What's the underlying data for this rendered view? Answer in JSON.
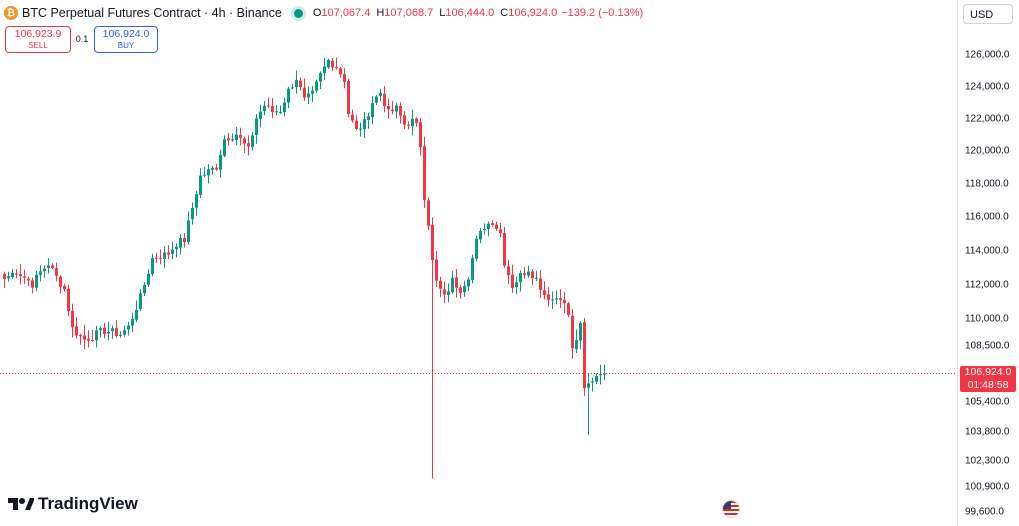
{
  "header": {
    "coin_icon": "bitcoin-icon",
    "coin_glyph": "₿",
    "title": "BTC Perpetual Futures Contract · 4h · Binance",
    "ohlc": {
      "o_label": "O",
      "o_value": "107,067.4",
      "h_label": "H",
      "h_value": "107,068.7",
      "l_label": "L",
      "l_value": "106,444.0",
      "c_label": "C",
      "c_value": "106,924.0",
      "change": "−139.2 (−0.13%)"
    }
  },
  "trade": {
    "sell_price": "106,923.9",
    "sell_label": "SELL",
    "spread": "0.1",
    "buy_price": "106,924.0",
    "buy_label": "BUY"
  },
  "currency": "USD",
  "price_tag": {
    "price": "106,924.0",
    "countdown": "01:48:58"
  },
  "logo": {
    "icon": "tradingview-logo-icon",
    "text": "TradingView"
  },
  "flag_icon": "us-flag-icon",
  "colors": {
    "up": "#089981",
    "down": "#f23645",
    "price_line": "#f23645"
  },
  "chart_data": {
    "type": "candlestick",
    "interval": "4h",
    "axis_ticks": [
      126000,
      124000,
      122000,
      120000,
      118000,
      116000,
      114000,
      112000,
      110000,
      108500,
      105400,
      103800,
      102300,
      100900,
      99600
    ],
    "axis_tick_labels": [
      "126,000.0",
      "124,000.0",
      "122,000.0",
      "120,000.0",
      "118,000.0",
      "116,000.0",
      "114,000.0",
      "112,000.0",
      "110,000.0",
      "108,500.0",
      "105,400.0",
      "103,800.0",
      "102,300.0",
      "100,900.0",
      "99,600.0"
    ],
    "last_price": 106924.0,
    "close_anchors": [
      [
        0,
        112300
      ],
      [
        3,
        112800
      ],
      [
        7,
        112000
      ],
      [
        9,
        112700
      ],
      [
        11,
        113200
      ],
      [
        13,
        112400
      ],
      [
        15,
        111700
      ],
      [
        17,
        109400
      ],
      [
        20,
        108800
      ],
      [
        25,
        109300
      ],
      [
        29,
        109100
      ],
      [
        31,
        109500
      ],
      [
        34,
        111200
      ],
      [
        37,
        113500
      ],
      [
        41,
        113800
      ],
      [
        43,
        114400
      ],
      [
        45,
        114600
      ],
      [
        47,
        116500
      ],
      [
        49,
        118400
      ],
      [
        53,
        119000
      ],
      [
        55,
        120700
      ],
      [
        58,
        121000
      ],
      [
        61,
        120000
      ],
      [
        63,
        122000
      ],
      [
        65,
        122800
      ],
      [
        67,
        122400
      ],
      [
        69,
        122500
      ],
      [
        71,
        123700
      ],
      [
        73,
        124500
      ],
      [
        75,
        123100
      ],
      [
        77,
        123500
      ],
      [
        79,
        124700
      ],
      [
        81,
        125600
      ],
      [
        83,
        125200
      ],
      [
        85,
        124400
      ],
      [
        86,
        122300
      ],
      [
        88,
        121200
      ],
      [
        90,
        121700
      ],
      [
        92,
        123000
      ],
      [
        94,
        123600
      ],
      [
        96,
        122300
      ],
      [
        98,
        122600
      ],
      [
        100,
        121600
      ],
      [
        102,
        121800
      ],
      [
        103,
        121500
      ],
      [
        104,
        120300
      ],
      [
        105,
        117200
      ],
      [
        106,
        115600
      ],
      [
        107,
        113300
      ],
      [
        108,
        112100
      ],
      [
        110,
        111200
      ],
      [
        112,
        112200
      ],
      [
        114,
        111700
      ],
      [
        116,
        112500
      ],
      [
        118,
        114500
      ],
      [
        120,
        115400
      ],
      [
        122,
        115700
      ],
      [
        124,
        115000
      ],
      [
        125,
        113300
      ],
      [
        127,
        111900
      ],
      [
        129,
        112500
      ],
      [
        131,
        112900
      ],
      [
        133,
        112300
      ],
      [
        135,
        111400
      ],
      [
        137,
        111100
      ],
      [
        139,
        111300
      ],
      [
        141,
        110200
      ],
      [
        142,
        108200
      ],
      [
        144,
        109500
      ],
      [
        145,
        106000
      ],
      [
        147,
        106600
      ],
      [
        149,
        107100
      ],
      [
        150,
        106924
      ]
    ],
    "wick_spikes": [
      {
        "index": 107,
        "low": 101300
      },
      {
        "index": 146,
        "low": 103600
      }
    ]
  }
}
